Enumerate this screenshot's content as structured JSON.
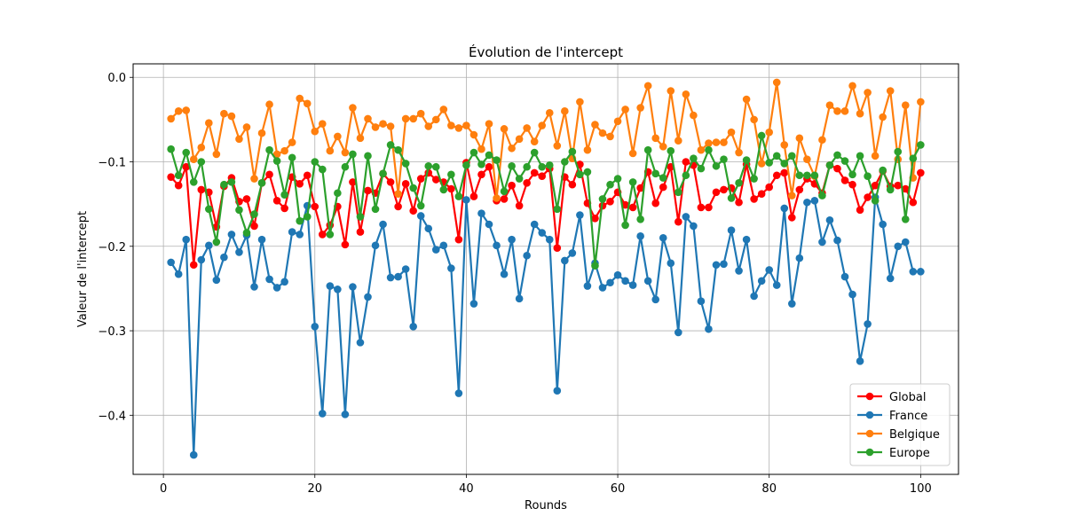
{
  "chart_data": {
    "type": "line",
    "title": "Évolution de l'intercept",
    "xlabel": "Rounds",
    "ylabel": "Valeur de l'intercept",
    "xlim": [
      -4,
      105
    ],
    "ylim": [
      -0.47,
      0.016
    ],
    "xticks": [
      0,
      20,
      40,
      60,
      80,
      100
    ],
    "xtick_labels": [
      "0",
      "20",
      "40",
      "60",
      "80",
      "100"
    ],
    "yticks": [
      0.0,
      -0.1,
      -0.2,
      -0.3,
      -0.4
    ],
    "ytick_labels": [
      "0.0",
      "−0.1",
      "−0.2",
      "−0.3",
      "−0.4"
    ],
    "grid": true,
    "legend_position": "bottom-right",
    "x": [
      1,
      2,
      3,
      4,
      5,
      6,
      7,
      8,
      9,
      10,
      11,
      12,
      13,
      14,
      15,
      16,
      17,
      18,
      19,
      20,
      21,
      22,
      23,
      24,
      25,
      26,
      27,
      28,
      29,
      30,
      31,
      32,
      33,
      34,
      35,
      36,
      37,
      38,
      39,
      40,
      41,
      42,
      43,
      44,
      45,
      46,
      47,
      48,
      49,
      50,
      51,
      52,
      53,
      54,
      55,
      56,
      57,
      58,
      59,
      60,
      61,
      62,
      63,
      64,
      65,
      66,
      67,
      68,
      69,
      70,
      71,
      72,
      73,
      74,
      75,
      76,
      77,
      78,
      79,
      80,
      81,
      82,
      83,
      84,
      85,
      86,
      87,
      88,
      89,
      90,
      91,
      92,
      93,
      94,
      95,
      96,
      97,
      98,
      99,
      100
    ],
    "series": [
      {
        "name": "Global",
        "color": "#ff0000",
        "values": [
          -0.118,
          -0.128,
          -0.106,
          -0.222,
          -0.133,
          -0.136,
          -0.177,
          -0.129,
          -0.119,
          -0.147,
          -0.144,
          -0.176,
          -0.125,
          -0.115,
          -0.146,
          -0.155,
          -0.118,
          -0.126,
          -0.116,
          -0.153,
          -0.186,
          -0.175,
          -0.153,
          -0.198,
          -0.124,
          -0.183,
          -0.134,
          -0.137,
          -0.114,
          -0.124,
          -0.153,
          -0.126,
          -0.158,
          -0.12,
          -0.113,
          -0.121,
          -0.124,
          -0.132,
          -0.192,
          -0.101,
          -0.141,
          -0.115,
          -0.106,
          -0.146,
          -0.144,
          -0.128,
          -0.152,
          -0.125,
          -0.113,
          -0.117,
          -0.108,
          -0.202,
          -0.118,
          -0.127,
          -0.103,
          -0.149,
          -0.167,
          -0.152,
          -0.147,
          -0.136,
          -0.151,
          -0.154,
          -0.131,
          -0.112,
          -0.149,
          -0.13,
          -0.106,
          -0.171,
          -0.1,
          -0.104,
          -0.154,
          -0.154,
          -0.136,
          -0.133,
          -0.131,
          -0.148,
          -0.103,
          -0.144,
          -0.138,
          -0.13,
          -0.116,
          -0.113,
          -0.166,
          -0.133,
          -0.12,
          -0.126,
          -0.137,
          -0.104,
          -0.108,
          -0.122,
          -0.127,
          -0.157,
          -0.142,
          -0.128,
          -0.111,
          -0.129,
          -0.128,
          -0.132,
          -0.148,
          -0.113
        ]
      },
      {
        "name": "France",
        "color": "#1f77b4",
        "values": [
          -0.219,
          -0.233,
          -0.192,
          -0.447,
          -0.216,
          -0.199,
          -0.24,
          -0.213,
          -0.186,
          -0.207,
          -0.187,
          -0.248,
          -0.192,
          -0.239,
          -0.249,
          -0.242,
          -0.183,
          -0.186,
          -0.152,
          -0.295,
          -0.398,
          -0.247,
          -0.251,
          -0.399,
          -0.248,
          -0.314,
          -0.26,
          -0.199,
          -0.174,
          -0.237,
          -0.236,
          -0.227,
          -0.295,
          -0.164,
          -0.179,
          -0.204,
          -0.199,
          -0.226,
          -0.374,
          -0.145,
          -0.268,
          -0.161,
          -0.174,
          -0.199,
          -0.233,
          -0.192,
          -0.262,
          -0.211,
          -0.174,
          -0.184,
          -0.192,
          -0.371,
          -0.217,
          -0.208,
          -0.163,
          -0.247,
          -0.22,
          -0.249,
          -0.243,
          -0.234,
          -0.241,
          -0.246,
          -0.188,
          -0.241,
          -0.263,
          -0.19,
          -0.22,
          -0.302,
          -0.165,
          -0.176,
          -0.265,
          -0.298,
          -0.222,
          -0.221,
          -0.181,
          -0.229,
          -0.192,
          -0.259,
          -0.241,
          -0.228,
          -0.246,
          -0.155,
          -0.268,
          -0.214,
          -0.148,
          -0.146,
          -0.195,
          -0.169,
          -0.193,
          -0.236,
          -0.257,
          -0.336,
          -0.292,
          -0.142,
          -0.174,
          -0.238,
          -0.2,
          -0.195,
          -0.23,
          -0.23
        ]
      },
      {
        "name": "Belgique",
        "color": "#ff7f0e",
        "values": [
          -0.049,
          -0.04,
          -0.039,
          -0.097,
          -0.083,
          -0.054,
          -0.091,
          -0.043,
          -0.046,
          -0.073,
          -0.059,
          -0.12,
          -0.066,
          -0.032,
          -0.091,
          -0.087,
          -0.077,
          -0.025,
          -0.031,
          -0.064,
          -0.055,
          -0.087,
          -0.07,
          -0.089,
          -0.036,
          -0.072,
          -0.049,
          -0.059,
          -0.055,
          -0.058,
          -0.138,
          -0.049,
          -0.049,
          -0.043,
          -0.058,
          -0.05,
          -0.038,
          -0.057,
          -0.06,
          -0.057,
          -0.068,
          -0.085,
          -0.055,
          -0.143,
          -0.061,
          -0.084,
          -0.073,
          -0.06,
          -0.076,
          -0.057,
          -0.042,
          -0.081,
          -0.04,
          -0.096,
          -0.029,
          -0.086,
          -0.056,
          -0.066,
          -0.07,
          -0.052,
          -0.038,
          -0.09,
          -0.036,
          -0.01,
          -0.072,
          -0.082,
          -0.016,
          -0.075,
          -0.02,
          -0.045,
          -0.086,
          -0.078,
          -0.077,
          -0.077,
          -0.065,
          -0.089,
          -0.026,
          -0.05,
          -0.102,
          -0.065,
          -0.006,
          -0.08,
          -0.14,
          -0.072,
          -0.097,
          -0.117,
          -0.074,
          -0.033,
          -0.04,
          -0.04,
          -0.01,
          -0.043,
          -0.018,
          -0.093,
          -0.047,
          -0.016,
          -0.097,
          -0.033,
          -0.119,
          -0.029
        ]
      },
      {
        "name": "Europe",
        "color": "#2ca02c",
        "values": [
          -0.085,
          -0.116,
          -0.089,
          -0.124,
          -0.1,
          -0.156,
          -0.195,
          -0.127,
          -0.124,
          -0.157,
          -0.184,
          -0.162,
          -0.125,
          -0.086,
          -0.099,
          -0.139,
          -0.095,
          -0.17,
          -0.165,
          -0.1,
          -0.109,
          -0.186,
          -0.137,
          -0.106,
          -0.091,
          -0.165,
          -0.093,
          -0.156,
          -0.114,
          -0.08,
          -0.086,
          -0.102,
          -0.131,
          -0.152,
          -0.105,
          -0.106,
          -0.133,
          -0.115,
          -0.141,
          -0.104,
          -0.089,
          -0.103,
          -0.092,
          -0.098,
          -0.135,
          -0.105,
          -0.12,
          -0.106,
          -0.089,
          -0.106,
          -0.104,
          -0.156,
          -0.1,
          -0.088,
          -0.115,
          -0.112,
          -0.223,
          -0.144,
          -0.127,
          -0.12,
          -0.175,
          -0.124,
          -0.168,
          -0.086,
          -0.114,
          -0.119,
          -0.087,
          -0.136,
          -0.116,
          -0.096,
          -0.108,
          -0.086,
          -0.105,
          -0.097,
          -0.143,
          -0.125,
          -0.098,
          -0.12,
          -0.069,
          -0.101,
          -0.093,
          -0.102,
          -0.093,
          -0.116,
          -0.116,
          -0.116,
          -0.14,
          -0.104,
          -0.092,
          -0.099,
          -0.115,
          -0.093,
          -0.117,
          -0.146,
          -0.11,
          -0.133,
          -0.088,
          -0.168,
          -0.096,
          -0.08
        ]
      }
    ]
  }
}
